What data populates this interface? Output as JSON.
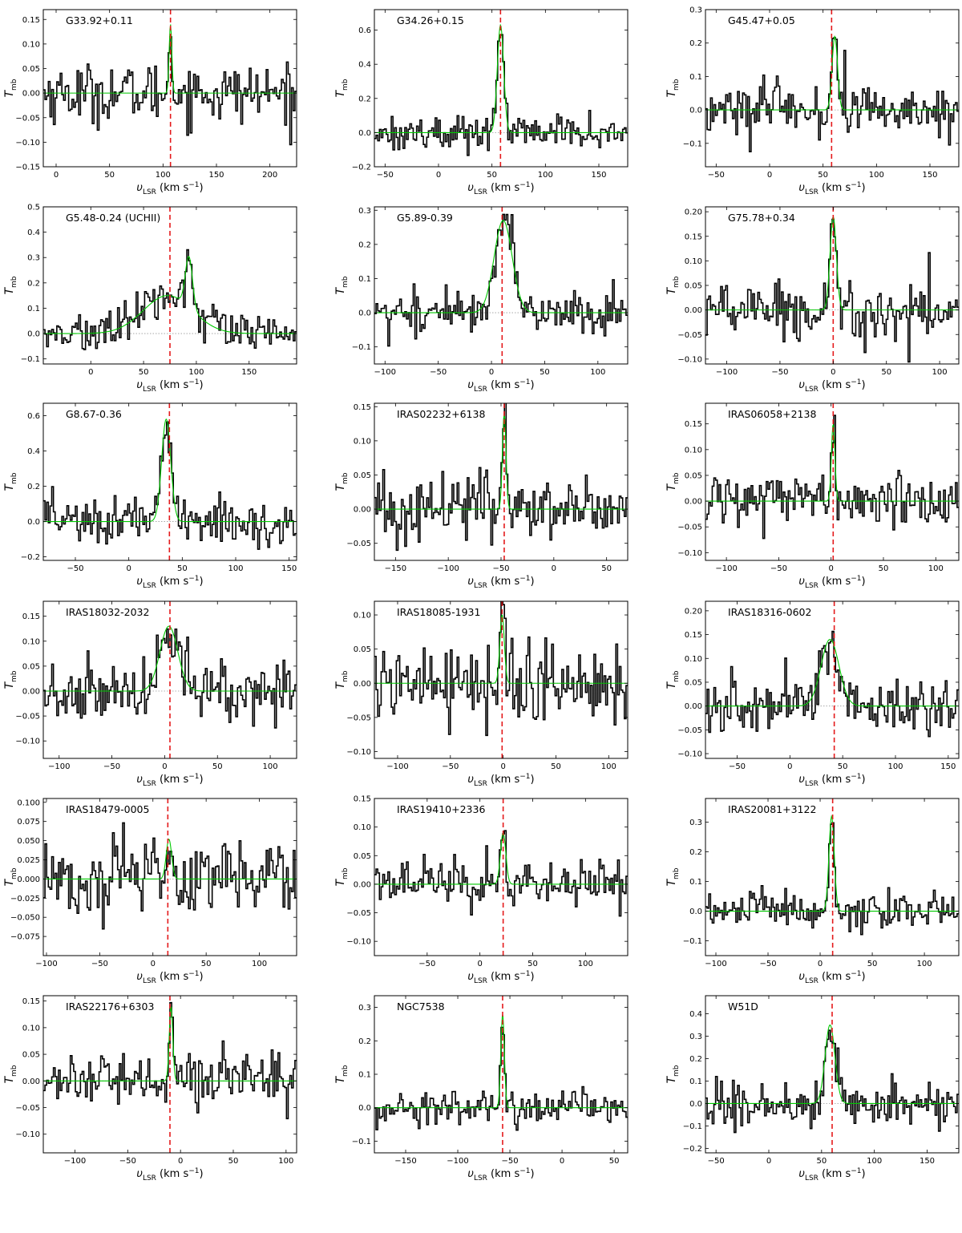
{
  "figure": {
    "y_axis_label": "T",
    "y_axis_label_sub": "mb",
    "x_axis_label": "υ",
    "x_axis_label_sub": "LSR",
    "x_axis_unit": " (km s",
    "x_axis_unit_exp": "−1",
    "x_axis_unit_close": ")",
    "colors": {
      "spectrum": "#000000",
      "fit": "#00c800",
      "vline": "#e41a1c",
      "baseline": "#9a9a9a"
    }
  },
  "chart_data": [
    {
      "type": "line",
      "title": "G33.92+0.11",
      "xlim": [
        -12,
        225
      ],
      "ylim": [
        -0.15,
        0.17
      ],
      "xticks": [
        0,
        50,
        100,
        150,
        200
      ],
      "yticks": [
        -0.15,
        -0.1,
        -0.05,
        0.0,
        0.05,
        0.1,
        0.15
      ],
      "ytick_labels": [
        "−0.15",
        "−0.10",
        "−0.05",
        "0.00",
        "0.05",
        "0.10",
        "0.15"
      ],
      "vline": 107,
      "noise": 0.03,
      "fit_components": [
        {
          "amplitude": 0.14,
          "center": 107,
          "fwhm": 3
        }
      ]
    },
    {
      "type": "line",
      "title": "G34.26+0.15",
      "xlim": [
        -60,
        177
      ],
      "ylim": [
        -0.2,
        0.72
      ],
      "xticks": [
        -50,
        0,
        50,
        100,
        150
      ],
      "yticks": [
        -0.2,
        0.0,
        0.2,
        0.4,
        0.6
      ],
      "ytick_labels": [
        "−0.2",
        "0.0",
        "0.2",
        "0.4",
        "0.6"
      ],
      "vline": 58,
      "noise": 0.05,
      "fit_components": [
        {
          "amplitude": 0.63,
          "center": 58,
          "fwhm": 7
        }
      ]
    },
    {
      "type": "line",
      "title": "G45.47+0.05",
      "xlim": [
        -60,
        177
      ],
      "ylim": [
        -0.17,
        0.3
      ],
      "xticks": [
        -50,
        0,
        50,
        100,
        150
      ],
      "yticks": [
        -0.1,
        0.0,
        0.1,
        0.2,
        0.3
      ],
      "ytick_labels": [
        "−0.1",
        "0.0",
        "0.1",
        "0.2",
        "0.3"
      ],
      "vline": 58,
      "noise": 0.04,
      "fit_components": [
        {
          "amplitude": 0.22,
          "center": 61,
          "fwhm": 6
        }
      ]
    },
    {
      "type": "line",
      "title": "G5.48-0.24 (UCHII)",
      "xlim": [
        -45,
        195
      ],
      "ylim": [
        -0.12,
        0.5
      ],
      "xticks": [
        0,
        50,
        100,
        150
      ],
      "yticks": [
        -0.1,
        0.0,
        0.1,
        0.2,
        0.3,
        0.4,
        0.5
      ],
      "ytick_labels": [
        "−0.1",
        "0.0",
        "0.1",
        "0.2",
        "0.3",
        "0.4",
        "0.5"
      ],
      "vline": 75,
      "noise": 0.04,
      "fit_components": [
        {
          "amplitude": 0.15,
          "center": 73,
          "fwhm": 55
        },
        {
          "amplitude": 0.2,
          "center": 93,
          "fwhm": 8
        }
      ]
    },
    {
      "type": "line",
      "title": "G5.89-0.39",
      "xlim": [
        -110,
        128
      ],
      "ylim": [
        -0.15,
        0.31
      ],
      "xticks": [
        -100,
        -50,
        0,
        50,
        100
      ],
      "yticks": [
        -0.1,
        0.0,
        0.1,
        0.2,
        0.3
      ],
      "ytick_labels": [
        "−0.1",
        "0.0",
        "0.1",
        "0.2",
        "0.3"
      ],
      "vline": 10,
      "noise": 0.035,
      "fit_components": [
        {
          "amplitude": 0.27,
          "center": 11,
          "fwhm": 20
        }
      ]
    },
    {
      "type": "line",
      "title": "G75.78+0.34",
      "xlim": [
        -120,
        118
      ],
      "ylim": [
        -0.11,
        0.21
      ],
      "xticks": [
        -100,
        -50,
        0,
        50,
        100
      ],
      "yticks": [
        -0.1,
        -0.05,
        0.0,
        0.05,
        0.1,
        0.15,
        0.2
      ],
      "ytick_labels": [
        "−0.10",
        "−0.05",
        "0.00",
        "0.05",
        "0.10",
        "0.15",
        "0.20"
      ],
      "vline": 0,
      "noise": 0.03,
      "fit_components": [
        {
          "amplitude": 0.19,
          "center": 0,
          "fwhm": 7
        }
      ]
    },
    {
      "type": "line",
      "title": "G8.67-0.36",
      "xlim": [
        -80,
        157
      ],
      "ylim": [
        -0.22,
        0.67
      ],
      "xticks": [
        -50,
        0,
        50,
        100,
        150
      ],
      "yticks": [
        -0.2,
        0.0,
        0.2,
        0.4,
        0.6
      ],
      "ytick_labels": [
        "−0.2",
        "0.0",
        "0.2",
        "0.4",
        "0.6"
      ],
      "vline": 38,
      "noise": 0.07,
      "fit_components": [
        {
          "amplitude": 0.58,
          "center": 35,
          "fwhm": 10
        }
      ]
    },
    {
      "type": "line",
      "title": "IRAS02232+6138",
      "xlim": [
        -170,
        70
      ],
      "ylim": [
        -0.075,
        0.155
      ],
      "xticks": [
        -150,
        -100,
        -50,
        0,
        50
      ],
      "yticks": [
        -0.05,
        0.0,
        0.05,
        0.1,
        0.15
      ],
      "ytick_labels": [
        "−0.05",
        "0.00",
        "0.05",
        "0.10",
        "0.15"
      ],
      "vline": -47,
      "noise": 0.025,
      "fit_components": [
        {
          "amplitude": 0.14,
          "center": -47,
          "fwhm": 4
        }
      ]
    },
    {
      "type": "line",
      "title": "IRAS06058+2138",
      "xlim": [
        -120,
        122
      ],
      "ylim": [
        -0.115,
        0.19
      ],
      "xticks": [
        -100,
        -50,
        0,
        50,
        100
      ],
      "yticks": [
        -0.1,
        -0.05,
        0.0,
        0.05,
        0.1,
        0.15
      ],
      "ytick_labels": [
        "−0.10",
        "−0.05",
        "0.00",
        "0.05",
        "0.10",
        "0.15"
      ],
      "vline": 2,
      "noise": 0.022,
      "fit_components": [
        {
          "amplitude": 0.15,
          "center": 2,
          "fwhm": 4
        }
      ]
    },
    {
      "type": "line",
      "title": "IRAS18032-2032",
      "xlim": [
        -115,
        125
      ],
      "ylim": [
        -0.135,
        0.18
      ],
      "xticks": [
        -100,
        -50,
        0,
        50,
        100
      ],
      "yticks": [
        -0.1,
        -0.05,
        0.0,
        0.05,
        0.1,
        0.15
      ],
      "ytick_labels": [
        "−0.10",
        "−0.05",
        "0.00",
        "0.05",
        "0.10",
        "0.15"
      ],
      "vline": 5,
      "noise": 0.03,
      "fit_components": [
        {
          "amplitude": 0.13,
          "center": 4,
          "fwhm": 20
        }
      ]
    },
    {
      "type": "line",
      "title": "IRAS18085-1931",
      "xlim": [
        -122,
        118
      ],
      "ylim": [
        -0.11,
        0.12
      ],
      "xticks": [
        -100,
        -50,
        0,
        50,
        100
      ],
      "yticks": [
        -0.1,
        -0.05,
        0.0,
        0.05,
        0.1
      ],
      "ytick_labels": [
        "−0.10",
        "−0.05",
        "0.00",
        "0.05",
        "0.10"
      ],
      "vline": -1,
      "noise": 0.03,
      "fit_components": [
        {
          "amplitude": 0.1,
          "center": -1,
          "fwhm": 5
        }
      ]
    },
    {
      "type": "line",
      "title": "IRAS18316-0602",
      "xlim": [
        -80,
        160
      ],
      "ylim": [
        -0.11,
        0.22
      ],
      "xticks": [
        -50,
        0,
        50,
        100,
        150
      ],
      "yticks": [
        -0.1,
        -0.05,
        0.0,
        0.05,
        0.1,
        0.15,
        0.2
      ],
      "ytick_labels": [
        "−0.10",
        "−0.05",
        "0.00",
        "0.05",
        "0.10",
        "0.15",
        "0.20"
      ],
      "vline": 42,
      "noise": 0.03,
      "fit_components": [
        {
          "amplitude": 0.14,
          "center": 38,
          "fwhm": 20
        }
      ]
    },
    {
      "type": "line",
      "title": "IRAS18479-0005",
      "xlim": [
        -103,
        135
      ],
      "ylim": [
        -0.1,
        0.105
      ],
      "xticks": [
        -100,
        -50,
        0,
        50,
        100
      ],
      "yticks": [
        -0.075,
        -0.05,
        -0.025,
        0.0,
        0.025,
        0.05,
        0.075,
        0.1
      ],
      "ytick_labels": [
        "−0.075",
        "−0.050",
        "−0.025",
        "0.000",
        "0.025",
        "0.050",
        "0.075",
        "0.100"
      ],
      "vline": 14,
      "noise": 0.028,
      "fit_components": [
        {
          "amplitude": 0.052,
          "center": 15,
          "fwhm": 6
        }
      ]
    },
    {
      "type": "line",
      "title": "IRAS19410+2336",
      "xlim": [
        -100,
        140
      ],
      "ylim": [
        -0.125,
        0.15
      ],
      "xticks": [
        -50,
        0,
        50,
        100
      ],
      "yticks": [
        -0.1,
        -0.05,
        0.0,
        0.05,
        0.1,
        0.15
      ],
      "ytick_labels": [
        "−0.10",
        "−0.05",
        "0.00",
        "0.05",
        "0.10",
        "0.15"
      ],
      "vline": 22,
      "noise": 0.022,
      "fit_components": [
        {
          "amplitude": 0.09,
          "center": 22,
          "fwhm": 6
        }
      ]
    },
    {
      "type": "line",
      "title": "IRAS20081+3122",
      "xlim": [
        -110,
        133
      ],
      "ylim": [
        -0.15,
        0.38
      ],
      "xticks": [
        -100,
        -50,
        0,
        50,
        100
      ],
      "yticks": [
        -0.1,
        0.0,
        0.1,
        0.2,
        0.3
      ],
      "ytick_labels": [
        "−0.1",
        "0.0",
        "0.1",
        "0.2",
        "0.3"
      ],
      "vline": 12,
      "noise": 0.035,
      "fit_components": [
        {
          "amplitude": 0.32,
          "center": 11,
          "fwhm": 6
        }
      ]
    },
    {
      "type": "line",
      "title": "IRAS22176+6303",
      "xlim": [
        -130,
        110
      ],
      "ylim": [
        -0.135,
        0.16
      ],
      "xticks": [
        -100,
        -50,
        0,
        50,
        100
      ],
      "yticks": [
        -0.1,
        -0.05,
        0.0,
        0.05,
        0.1,
        0.15
      ],
      "ytick_labels": [
        "−0.10",
        "−0.05",
        "0.00",
        "0.05",
        "0.10",
        "0.15"
      ],
      "vline": -10,
      "noise": 0.025,
      "fit_components": [
        {
          "amplitude": 0.14,
          "center": -9,
          "fwhm": 4
        }
      ]
    },
    {
      "type": "line",
      "title": "NGC7538",
      "xlim": [
        -180,
        63
      ],
      "ylim": [
        -0.135,
        0.335
      ],
      "xticks": [
        -150,
        -100,
        -50,
        0,
        50
      ],
      "yticks": [
        -0.1,
        0.0,
        0.1,
        0.2,
        0.3
      ],
      "ytick_labels": [
        "−0.1",
        "0.0",
        "0.1",
        "0.2",
        "0.3"
      ],
      "vline": -57,
      "noise": 0.025,
      "fit_components": [
        {
          "amplitude": 0.28,
          "center": -57,
          "fwhm": 4
        }
      ]
    },
    {
      "type": "line",
      "title": "W51D",
      "xlim": [
        -60,
        180
      ],
      "ylim": [
        -0.22,
        0.48
      ],
      "xticks": [
        -50,
        0,
        50,
        100,
        150
      ],
      "yticks": [
        -0.2,
        -0.1,
        0.0,
        0.1,
        0.2,
        0.3,
        0.4
      ],
      "ytick_labels": [
        "−0.2",
        "−0.1",
        "0.0",
        "0.1",
        "0.2",
        "0.3",
        "0.4"
      ],
      "vline": 60,
      "noise": 0.05,
      "fit_components": [
        {
          "amplitude": 0.35,
          "center": 58,
          "fwhm": 11
        }
      ]
    }
  ]
}
